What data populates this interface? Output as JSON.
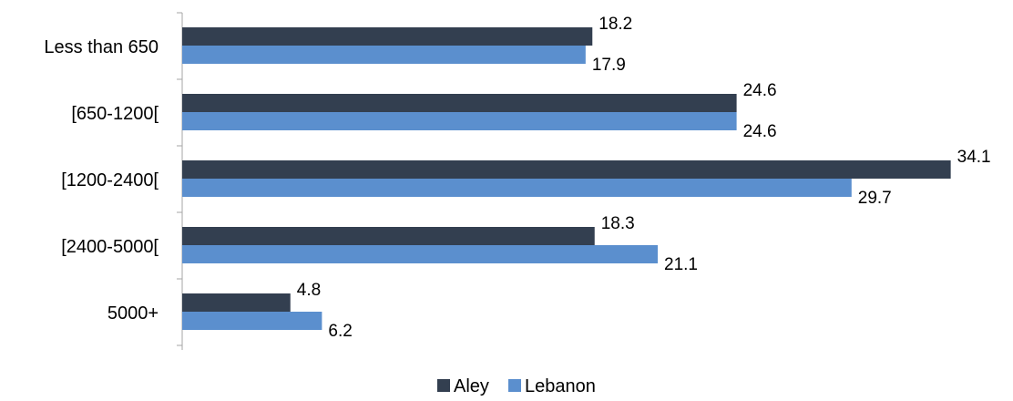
{
  "chart_data": {
    "type": "bar",
    "orientation": "horizontal",
    "categories": [
      "Less than 650",
      "[650-1200[",
      "[1200-2400[",
      "[2400-5000[",
      "5000+"
    ],
    "series": [
      {
        "name": "Aley",
        "values": [
          18.2,
          24.6,
          34.1,
          18.3,
          4.8
        ],
        "color": "#333f50"
      },
      {
        "name": "Lebanon",
        "values": [
          17.9,
          24.6,
          29.7,
          21.1,
          6.2
        ],
        "color": "#5b8fce"
      }
    ],
    "xlim": [
      0,
      35
    ],
    "grid": false,
    "legend_position": "bottom"
  }
}
